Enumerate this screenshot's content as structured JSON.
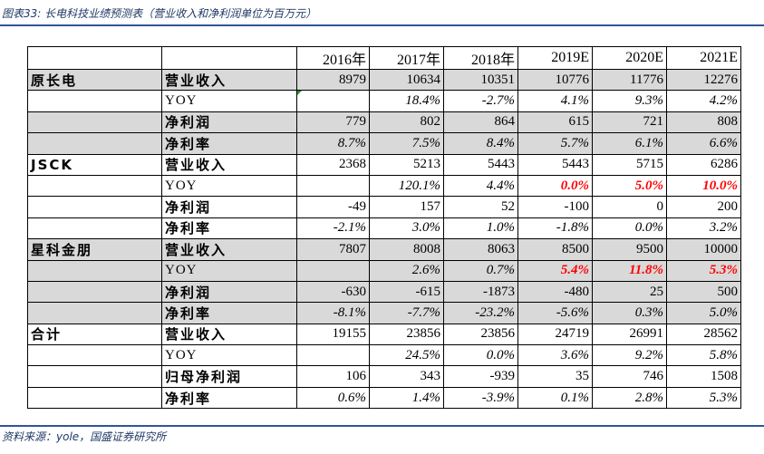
{
  "caption": "图表33: 长电科技业绩预测表（营业收入和净利润单位为百万元）",
  "source": "资料来源：yole，国盛证券研究所",
  "years": [
    "2016年",
    "2017年",
    "2018年",
    "2019E",
    "2020E",
    "2021E"
  ],
  "groups": [
    {
      "company": "原长电",
      "rows": [
        {
          "metric": "营业收入",
          "values": [
            "8979",
            "10634",
            "10351",
            "10776",
            "11776",
            "12276"
          ]
        },
        {
          "metric": "YOY",
          "values": [
            "",
            "18.4%",
            "-2.7%",
            "4.1%",
            "9.3%",
            "4.2%"
          ]
        },
        {
          "metric": "净利润",
          "values": [
            "779",
            "802",
            "864",
            "615",
            "721",
            "808"
          ]
        },
        {
          "metric": "净利率",
          "values": [
            "8.7%",
            "7.5%",
            "8.4%",
            "5.7%",
            "6.1%",
            "6.6%"
          ]
        }
      ]
    },
    {
      "company": "JSCK",
      "rows": [
        {
          "metric": "营业收入",
          "values": [
            "2368",
            "5213",
            "5443",
            "5443",
            "5715",
            "6286"
          ]
        },
        {
          "metric": "YOY",
          "values": [
            "",
            "120.1%",
            "4.4%",
            "0.0%",
            "5.0%",
            "10.0%"
          ]
        },
        {
          "metric": "净利润",
          "values": [
            "-49",
            "157",
            "52",
            "-100",
            "0",
            "200"
          ]
        },
        {
          "metric": "净利率",
          "values": [
            "-2.1%",
            "3.0%",
            "1.0%",
            "-1.8%",
            "0.0%",
            "3.2%"
          ]
        }
      ]
    },
    {
      "company": "星科金朋",
      "rows": [
        {
          "metric": "营业收入",
          "values": [
            "7807",
            "8008",
            "8063",
            "8500",
            "9500",
            "10000"
          ]
        },
        {
          "metric": "YOY",
          "values": [
            "",
            "2.6%",
            "0.7%",
            "5.4%",
            "11.8%",
            "5.3%"
          ]
        },
        {
          "metric": "净利润",
          "values": [
            "-630",
            "-615",
            "-1873",
            "-480",
            "25",
            "500"
          ]
        },
        {
          "metric": "净利率",
          "values": [
            "-8.1%",
            "-7.7%",
            "-23.2%",
            "-5.6%",
            "0.3%",
            "5.0%"
          ]
        }
      ]
    },
    {
      "company": "合计",
      "rows": [
        {
          "metric": "营业收入",
          "values": [
            "19155",
            "23856",
            "23856",
            "24719",
            "26991",
            "28562"
          ]
        },
        {
          "metric": "YOY",
          "values": [
            "",
            "24.5%",
            "0.0%",
            "3.6%",
            "9.2%",
            "5.8%"
          ]
        },
        {
          "metric": "归母净利润",
          "values": [
            "106",
            "343",
            "-939",
            "35",
            "746",
            "1508"
          ]
        },
        {
          "metric": "净利率",
          "values": [
            "0.6%",
            "1.4%",
            "-3.9%",
            "0.1%",
            "2.8%",
            "5.3%"
          ]
        }
      ]
    }
  ],
  "highlight_color": "#ff0000",
  "shade_color": "#d9d9d9",
  "accent_color": "#2e5597"
}
